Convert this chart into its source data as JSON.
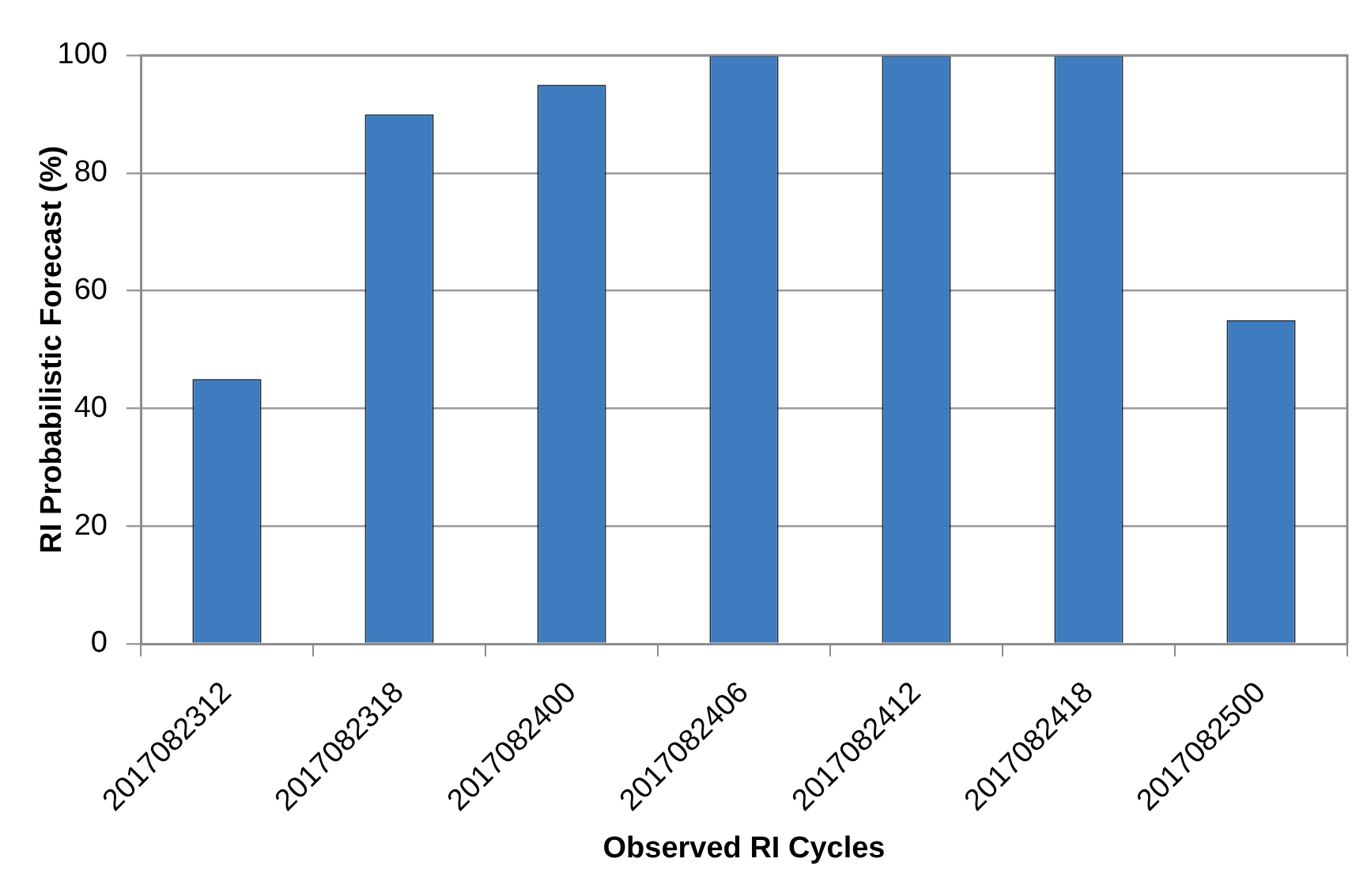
{
  "chart_data": {
    "type": "bar",
    "xlabel": "Observed RI Cycles",
    "ylabel": "RI Probabilistic Forecast (%)",
    "categories": [
      "2017082312",
      "2017082318",
      "2017082400",
      "2017082406",
      "2017082412",
      "2017082418",
      "2017082500"
    ],
    "values": [
      45,
      90,
      95,
      100,
      100,
      100,
      55
    ],
    "color": "#3f7bbf",
    "ylim": [
      0,
      100
    ],
    "yticks": [
      0,
      20,
      40,
      60,
      80,
      100
    ],
    "grid": "y"
  }
}
